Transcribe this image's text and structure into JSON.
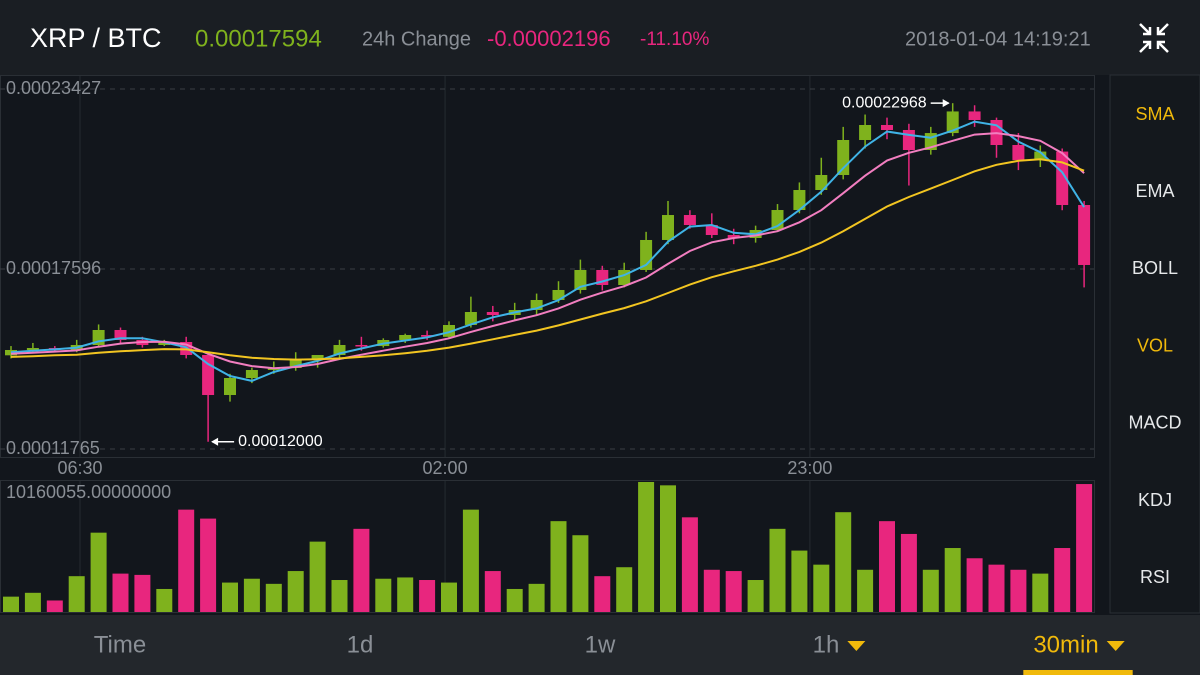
{
  "header": {
    "pair": "XRP / BTC",
    "price": 0.00017594,
    "change_label": "24h Change",
    "change": -2.196e-05,
    "change_pct": "-11.10%",
    "datetime": "2018-01-04 14:19:21"
  },
  "sidebar": [
    {
      "label": "SMA",
      "active": true
    },
    {
      "label": "EMA",
      "active": false
    },
    {
      "label": "BOLL",
      "active": false
    },
    {
      "label": "VOL",
      "active": true
    },
    {
      "label": "MACD",
      "active": false
    },
    {
      "label": "KDJ",
      "active": false
    },
    {
      "label": "RSI",
      "active": false
    }
  ],
  "toolbar": [
    {
      "label": "Time",
      "dropdown": false,
      "selected": false
    },
    {
      "label": "1d",
      "dropdown": false,
      "selected": false
    },
    {
      "label": "1w",
      "dropdown": false,
      "selected": false
    },
    {
      "label": "1h",
      "dropdown": true,
      "selected": false
    },
    {
      "label": "30min",
      "dropdown": true,
      "selected": true
    }
  ],
  "chart_data": {
    "type": "candlestick",
    "up_color": "#7fb21d",
    "down_color": "#e8267e",
    "ylim": [
      0.00011765,
      0.00023427
    ],
    "yticks": [
      0.00011765,
      0.00017596,
      0.00023427
    ],
    "xticks": [
      {
        "value": 3.15,
        "label": "06:30"
      },
      {
        "value": 19.82,
        "label": "02:00"
      },
      {
        "value": 36.48,
        "label": "23:00"
      }
    ],
    "max_label": "0.00022968",
    "min_label": "0.00012000",
    "open": [
      0.000148,
      0.00014972,
      0.00015037,
      0.00014972,
      0.00015134,
      0.0001562,
      0.00015296,
      0.00015134,
      0.00015231,
      0.0001481,
      0.00013514,
      0.00014065,
      0.00014324,
      0.00014389,
      0.00014648,
      0.0001481,
      0.00015134,
      0.000151,
      0.00015296,
      0.00015458,
      0.000154,
      0.00015782,
      0.00016203,
      0.00016106,
      0.00016268,
      0.00016592,
      0.00016916,
      0.00017564,
      0.00017078,
      0.00017564,
      0.00018536,
      0.00019345,
      0.00019021,
      0.00018697,
      0.000186,
      0.00018859,
      0.00019507,
      0.00020155,
      0.00020641,
      0.00021775,
      0.00022261,
      0.00022099,
      0.00021451,
      0.00022,
      0.000227,
      0.00022423,
      0.00021613,
      0.00021127,
      0.000214,
      0.00019669
    ],
    "high": [
      0.000151,
      0.000152,
      0.000151,
      0.000153,
      0.000158,
      0.000157,
      0.000154,
      0.000153,
      0.000154,
      0.000149,
      0.000142,
      0.000144,
      0.000146,
      0.000149,
      0.000147,
      0.000153,
      0.000154,
      0.0001535,
      0.000155,
      0.000156,
      0.000159,
      0.000167,
      0.000164,
      0.000165,
      0.000168,
      0.000172,
      0.000179,
      0.000177,
      0.000178,
      0.000188,
      0.000198,
      0.000195,
      0.000194,
      0.000189,
      0.00019,
      0.000197,
      0.000204,
      0.000212,
      0.000222,
      0.000226,
      0.000225,
      0.000223,
      0.000222,
      0.00022968,
      0.000229,
      0.000225,
      0.00022,
      0.000216,
      0.000215,
      0.000198
    ],
    "low": [
      0.000147,
      0.000149,
      0.000149,
      0.000149,
      0.000151,
      0.000152,
      0.0001505,
      0.000151,
      0.000147,
      0.00012,
      0.000133,
      0.000139,
      0.000142,
      0.000143,
      0.000144,
      0.000147,
      0.0001495,
      0.0001505,
      0.000152,
      0.000153,
      0.0001535,
      0.000157,
      0.000159,
      0.0001595,
      0.000161,
      0.000165,
      0.000168,
      0.000169,
      0.00017,
      0.000175,
      0.000184,
      0.000189,
      0.000186,
      0.000184,
      0.0001845,
      0.000188,
      0.000194,
      0.0002,
      0.000205,
      0.000215,
      0.000218,
      0.000203,
      0.000213,
      0.000219,
      0.000222,
      0.000212,
      0.000208,
      0.000209,
      0.000195,
      0.00017
    ],
    "close": [
      0.00014972,
      0.00015037,
      0.00014972,
      0.00015134,
      0.0001562,
      0.00015296,
      0.00015134,
      0.00015231,
      0.0001481,
      0.00013514,
      0.00014065,
      0.00014324,
      0.00014389,
      0.00014648,
      0.0001481,
      0.00015134,
      0.000151,
      0.00015296,
      0.00015458,
      0.000154,
      0.00015782,
      0.00016203,
      0.00016106,
      0.00016268,
      0.00016592,
      0.00016916,
      0.00017564,
      0.00017078,
      0.00017564,
      0.00018536,
      0.00019345,
      0.00019021,
      0.00018697,
      0.000186,
      0.00018859,
      0.00019507,
      0.00020155,
      0.00020641,
      0.00021775,
      0.00022261,
      0.00022099,
      0.00021451,
      0.00022,
      0.000227,
      0.00022423,
      0.00021613,
      0.00021127,
      0.000214,
      0.00019669,
      0.00017726
    ],
    "moving_averages": [
      {
        "color": "#3fb3e6",
        "values": [
          0.000149,
          0.0001495,
          0.0001499,
          0.0001505,
          0.0001525,
          0.0001535,
          0.0001535,
          0.0001522,
          0.0001506,
          0.0001452,
          0.0001413,
          0.0001397,
          0.0001426,
          0.0001445,
          0.0001462,
          0.0001486,
          0.0001502,
          0.0001518,
          0.0001528,
          0.0001538,
          0.0001555,
          0.000158,
          0.0001603,
          0.0001619,
          0.0001632,
          0.0001659,
          0.0001702,
          0.0001719,
          0.000174,
          0.0001773,
          0.0001848,
          0.0001897,
          0.0001902,
          0.0001877,
          0.0001872,
          0.0001899,
          0.0001951,
          0.000201,
          0.0002086,
          0.0002156,
          0.0002205,
          0.0002194,
          0.0002185,
          0.0002208,
          0.0002237,
          0.0002225,
          0.0002172,
          0.0002138,
          0.0002073,
          0.000196
        ]
      },
      {
        "color": "#f27ec0",
        "values": [
          0.0001485,
          0.0001488,
          0.0001492,
          0.0001496,
          0.0001508,
          0.0001518,
          0.0001523,
          0.0001524,
          0.0001515,
          0.0001485,
          0.000146,
          0.0001445,
          0.0001438,
          0.0001442,
          0.0001452,
          0.0001468,
          0.0001482,
          0.0001495,
          0.0001508,
          0.000152,
          0.0001535,
          0.0001556,
          0.0001575,
          0.0001593,
          0.000161,
          0.0001632,
          0.000166,
          0.0001683,
          0.0001704,
          0.0001732,
          0.0001776,
          0.0001818,
          0.0001846,
          0.000186,
          0.0001868,
          0.0001882,
          0.0001911,
          0.000195,
          0.0002005,
          0.0002062,
          0.0002111,
          0.0002136,
          0.0002154,
          0.0002175,
          0.0002195,
          0.00022,
          0.000219,
          0.0002175,
          0.0002135,
          0.000207
        ]
      },
      {
        "color": "#f2c521",
        "values": [
          0.0001475,
          0.0001477,
          0.000148,
          0.0001482,
          0.0001488,
          0.0001493,
          0.0001497,
          0.00015,
          0.0001499,
          0.000149,
          0.000148,
          0.0001472,
          0.0001468,
          0.0001466,
          0.0001467,
          0.000147,
          0.0001475,
          0.000148,
          0.0001487,
          0.0001495,
          0.0001505,
          0.0001518,
          0.0001532,
          0.0001546,
          0.000156,
          0.0001577,
          0.0001596,
          0.0001615,
          0.0001633,
          0.0001655,
          0.0001682,
          0.0001709,
          0.0001733,
          0.0001752,
          0.000177,
          0.000179,
          0.0001815,
          0.0001845,
          0.0001882,
          0.0001922,
          0.0001962,
          0.0001993,
          0.000202,
          0.0002048,
          0.0002076,
          0.0002097,
          0.000211,
          0.0002115,
          0.0002105,
          0.0002078
        ]
      }
    ],
    "volume": [
      1200000,
      1500000,
      900000,
      2800000,
      6200000,
      3000000,
      2900000,
      1800000,
      8000000,
      7300000,
      2300000,
      2600000,
      2200000,
      3200000,
      5500000,
      2500000,
      6500000,
      2600000,
      2700000,
      2500000,
      2300000,
      8000000,
      3200000,
      1800000,
      2200000,
      7100000,
      6000000,
      2800000,
      3500000,
      10160055,
      9900000,
      7400000,
      3300000,
      3200000,
      2500000,
      6500000,
      4800000,
      3700000,
      7800000,
      3300000,
      7100000,
      6100000,
      3300000,
      5000000,
      4200000,
      3700000,
      3300000,
      3000000,
      5000000,
      10000000
    ],
    "volume_ylim": [
      0,
      10160055
    ],
    "volume_ticks": [
      {
        "value": 10160055,
        "label": "10160055.00000000"
      }
    ]
  }
}
